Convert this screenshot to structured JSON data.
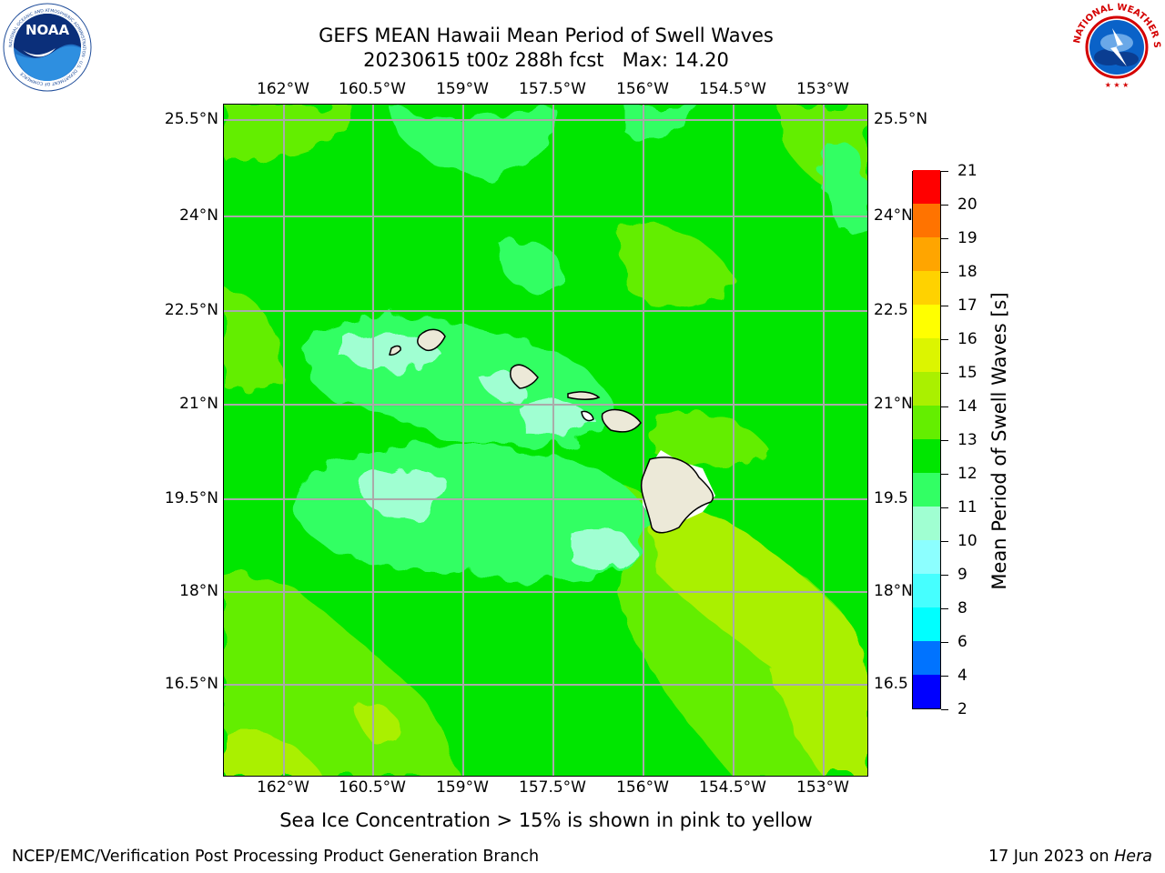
{
  "title": {
    "line1": "GEFS MEAN Hawaii Mean Period of Swell Waves",
    "line2": "20230615 t00z 288h fcst   Max: 14.20"
  },
  "logos": {
    "left": {
      "icon": "noaa-logo",
      "text": "NOAA",
      "ring_text": "NATIONAL OCEANIC AND ATMOSPHERIC ADMINISTRATION · U.S. DEPARTMENT OF COMMERCE"
    },
    "right": {
      "icon": "nws-logo",
      "ring_text": "NATIONAL WEATHER SERVICE"
    }
  },
  "map": {
    "lon_labels": [
      "162°W",
      "160.5°W",
      "159°W",
      "157.5°W",
      "156°W",
      "154.5°W",
      "153°W"
    ],
    "lat_labels_left": [
      "25.5°N",
      "24°N",
      "22.5°N",
      "21°N",
      "19.5°N",
      "18°N",
      "16.5°N"
    ],
    "lat_labels_right": [
      "25.5°N",
      "24°N",
      "22.5",
      "21°N",
      "19.5",
      "18°N",
      "16.5"
    ],
    "grid": true,
    "land_color": "#ece9d8"
  },
  "colorbar": {
    "title": "Mean Period of Swell Waves [s]",
    "levels": [
      "2",
      "4",
      "6",
      "8",
      "9",
      "10",
      "11",
      "12",
      "13",
      "14",
      "15",
      "16",
      "17",
      "18",
      "19",
      "20",
      "21"
    ],
    "colors": [
      "#0000ff",
      "#0073ff",
      "#00ffff",
      "#46ffff",
      "#8cffff",
      "#a0ffd2",
      "#32ff64",
      "#00e600",
      "#64ee00",
      "#aaf000",
      "#dcf500",
      "#ffff00",
      "#ffd200",
      "#ffa500",
      "#ff7300",
      "#ff4600"
    ],
    "top_color": "#ff0000"
  },
  "footnote": "Sea Ice Concentration > 15% is shown in pink to yellow",
  "credit_left": "NCEP/EMC/Verification Post Processing Product Generation Branch",
  "credit_right_prefix": "17 Jun 2023 on ",
  "credit_right_machine": "Hera"
}
